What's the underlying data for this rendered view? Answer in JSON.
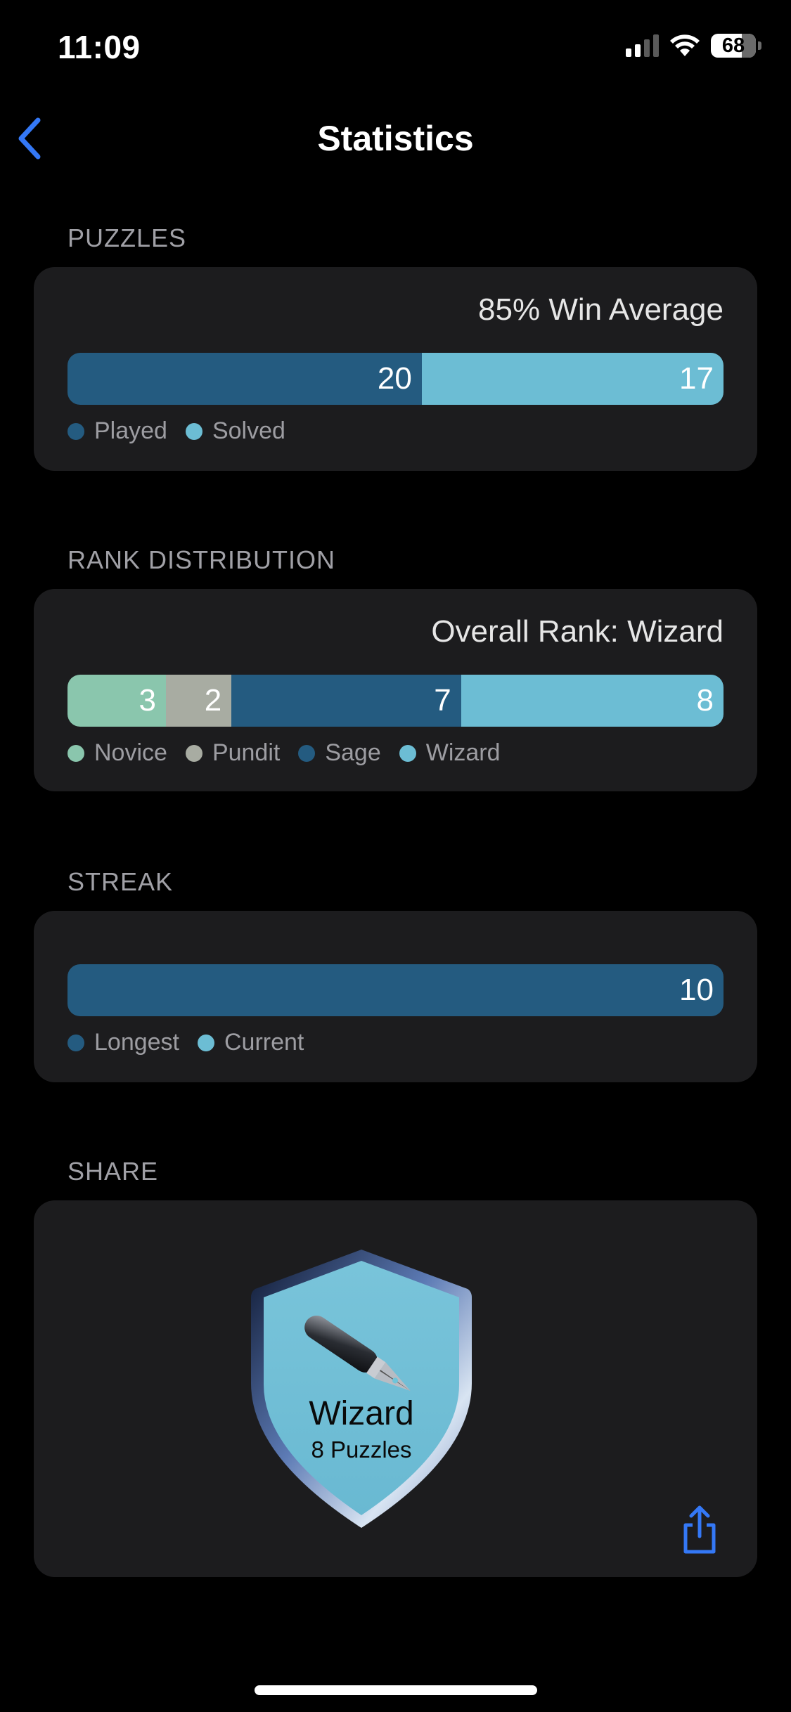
{
  "status_bar": {
    "time": "11:09",
    "battery": "68"
  },
  "nav": {
    "title": "Statistics"
  },
  "puzzles": {
    "header": "PUZZLES",
    "summary": "85% Win Average",
    "segments": [
      {
        "value": "20",
        "color": "#245b80",
        "fraction": 0.54
      },
      {
        "value": "17",
        "color": "#6cbdd4",
        "fraction": 0.46
      }
    ],
    "legend": [
      {
        "label": "Played",
        "color": "#245b80"
      },
      {
        "label": "Solved",
        "color": "#6cbdd4"
      }
    ]
  },
  "rank": {
    "header": "RANK DISTRIBUTION",
    "summary": "Overall Rank: Wizard",
    "segments": [
      {
        "value": "3",
        "color": "#8ac6ad",
        "fraction": 0.15
      },
      {
        "value": "2",
        "color": "#a8aca2",
        "fraction": 0.1
      },
      {
        "value": "7",
        "color": "#245b80",
        "fraction": 0.35
      },
      {
        "value": "8",
        "color": "#6cbdd4",
        "fraction": 0.4
      }
    ],
    "legend": [
      {
        "label": "Novice",
        "color": "#8ac6ad"
      },
      {
        "label": "Pundit",
        "color": "#a8aca2"
      },
      {
        "label": "Sage",
        "color": "#245b80"
      },
      {
        "label": "Wizard",
        "color": "#6cbdd4"
      }
    ]
  },
  "streak": {
    "header": "STREAK",
    "segments": [
      {
        "value": "10",
        "color": "#245b80",
        "fraction": 1.0
      }
    ],
    "legend": [
      {
        "label": "Longest",
        "color": "#245b80"
      },
      {
        "label": "Current",
        "color": "#6cbdd4"
      }
    ]
  },
  "share": {
    "header": "SHARE",
    "badge": {
      "rank": "Wizard",
      "subtitle": "8 Puzzles",
      "icon": "fountain-pen-icon"
    },
    "share_icon": "share-icon"
  },
  "colors": {
    "accent": "#3478f6",
    "card": "#1c1c1e",
    "background": "#000000"
  }
}
